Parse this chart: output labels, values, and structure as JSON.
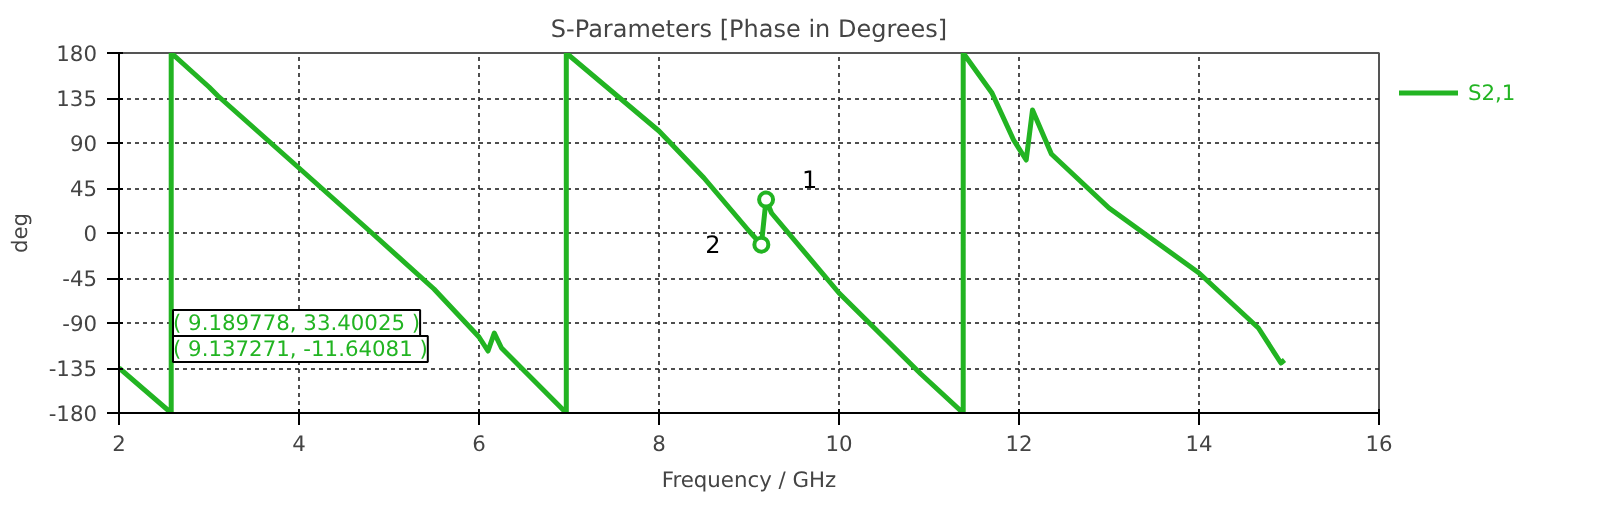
{
  "chart_data": {
    "type": "line",
    "title": "S-Parameters [Phase in Degrees]",
    "xlabel": "Frequency / GHz",
    "ylabel": "deg",
    "x": [
      2,
      2.58,
      2.58,
      3.0,
      3.1,
      4,
      4.81,
      5.5,
      6.0,
      6.1,
      6.17,
      6.25,
      6.97,
      6.97,
      8,
      8.5,
      9.0,
      9.137271,
      9.189778,
      9.25,
      10,
      10.91,
      11.38,
      11.38,
      11.7,
      11.94,
      12.08,
      12.15,
      12.36,
      13,
      14,
      14.66,
      14.91,
      14.95
    ],
    "series": [
      {
        "name": "S2,1",
        "color": "#22b422",
        "values": [
          -135,
          -180,
          180,
          146,
          137,
          65,
          0,
          -56,
          -104,
          -118,
          -100,
          -115,
          -180,
          180,
          102,
          55,
          2,
          -11.64081,
          33.40025,
          20,
          -60,
          -141,
          -180,
          180,
          140,
          93,
          73,
          123,
          79,
          25,
          -40,
          -95,
          -130,
          -127
        ]
      }
    ],
    "xlim": [
      2,
      16
    ],
    "xticks": [
      2,
      4,
      6,
      8,
      10,
      12,
      14,
      16
    ],
    "ylim": [
      -180,
      180
    ],
    "yticks": [
      -180,
      -135,
      -90,
      -45,
      0,
      45,
      90,
      135,
      180
    ],
    "annotations": [
      {
        "text": "1",
        "x": 9.189778,
        "y": 33.40025
      },
      {
        "text": "2",
        "x": 9.137271,
        "y": -11.64081
      },
      "( 9.189778, 33.40025 )",
      "( 9.137271, -11.64081 )"
    ],
    "grid": true,
    "legend": "top right",
    "line_style": "solid",
    "marker": "none"
  }
}
